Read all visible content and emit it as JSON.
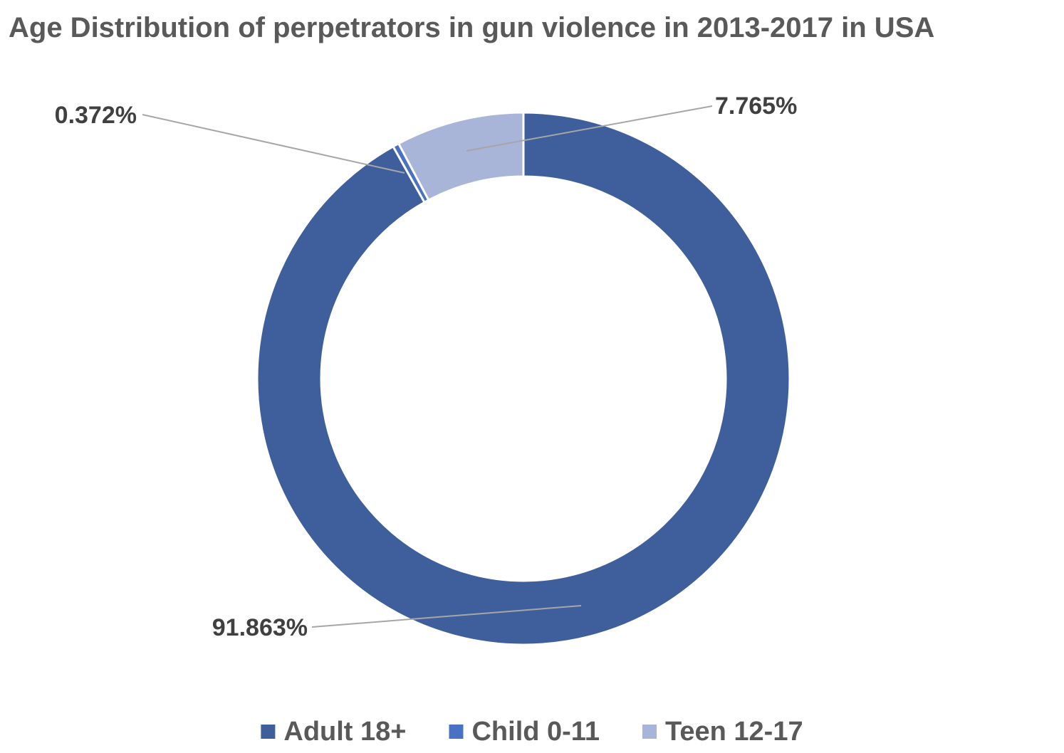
{
  "chart_data": {
    "type": "pie",
    "subtype": "doughnut",
    "title": "Age Distribution of perpetrators in gun violence in  2013-2017 in USA",
    "legend_position": "bottom",
    "slices": [
      {
        "name": "Adult 18+",
        "value": 91.863,
        "label": "91.863%",
        "color": "#3f5e9c"
      },
      {
        "name": "Child 0-11",
        "value": 0.372,
        "label": "0.372%",
        "color": "#4a72c4"
      },
      {
        "name": "Teen 12-17",
        "value": 7.765,
        "label": "7.765%",
        "color": "#a8b4d8"
      }
    ]
  }
}
